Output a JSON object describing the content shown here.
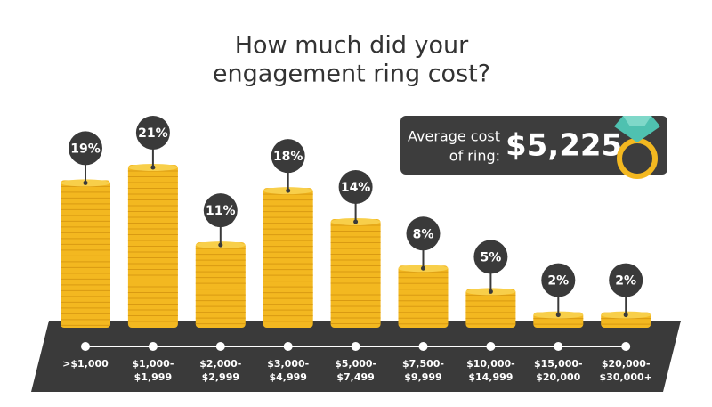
{
  "chart_data": {
    "type": "coin-stack",
    "title": [
      "How much did your",
      "engagement ring cost?"
    ],
    "categories": [
      [
        ">$1,000"
      ],
      [
        "$1,000-",
        "$1,999"
      ],
      [
        "$2,000-",
        "$2,999"
      ],
      [
        "$3,000-",
        "$4,999"
      ],
      [
        "$5,000-",
        "$7,499"
      ],
      [
        "$7,500-",
        "$9,999"
      ],
      [
        "$10,000-",
        "$14,999"
      ],
      [
        "$15,000-",
        "$20,000"
      ],
      [
        "$20,000-",
        "$30,000+"
      ]
    ],
    "values": [
      19,
      21,
      11,
      18,
      14,
      8,
      5,
      2,
      2
    ],
    "value_labels": [
      "19%",
      "21%",
      "11%",
      "18%",
      "14%",
      "8%",
      "5%",
      "2%",
      "2%"
    ],
    "color": "#f3b820",
    "annotation": {
      "label": [
        "Average cost",
        "of ring:"
      ],
      "value": "$5,225"
    }
  }
}
